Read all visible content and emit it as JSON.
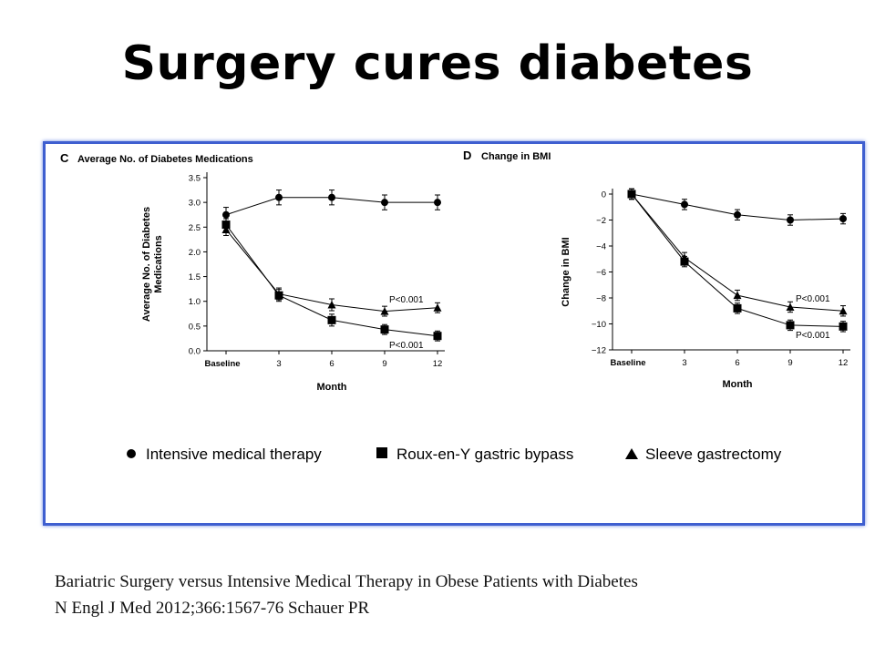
{
  "page": {
    "title": "Surgery cures diabetes"
  },
  "caption": {
    "line1": "Bariatric Surgery versus Intensive Medical Therapy in Obese Patients with Diabetes",
    "line2": "N Engl J Med 2012;366:1567-76 Schauer PR"
  },
  "legend": {
    "items": [
      {
        "marker": "circle",
        "label": "Intensive medical therapy"
      },
      {
        "marker": "square",
        "label": "Roux-en-Y gastric bypass"
      },
      {
        "marker": "triangle",
        "label": "Sleeve gastrectomy"
      }
    ]
  },
  "chart_data": [
    {
      "type": "line",
      "panel_letter": "C",
      "title": "Average No. of Diabetes Medications",
      "xlabel": "Month",
      "ylabel": "Average No. of Diabetes Medications",
      "x": [
        "Baseline",
        "3",
        "6",
        "9",
        "12"
      ],
      "ylim": [
        0,
        3.5
      ],
      "yticks": [
        "0.0",
        "0.5",
        "1.0",
        "1.5",
        "2.0",
        "2.5",
        "3.0",
        "3.5"
      ],
      "series": [
        {
          "marker": "circle",
          "values": [
            2.75,
            3.1,
            3.1,
            3.0,
            3.0
          ],
          "err": [
            0.15,
            0.15,
            0.15,
            0.15,
            0.15
          ]
        },
        {
          "marker": "square",
          "values": [
            2.55,
            1.12,
            0.62,
            0.43,
            0.3
          ],
          "err": [
            0.12,
            0.12,
            0.12,
            0.1,
            0.1
          ]
        },
        {
          "marker": "triangle",
          "values": [
            2.45,
            1.15,
            0.93,
            0.8,
            0.87
          ],
          "err": [
            0.12,
            0.12,
            0.12,
            0.1,
            0.1
          ]
        }
      ],
      "annotations": [
        "P<0.001",
        "P<0.001"
      ]
    },
    {
      "type": "line",
      "panel_letter": "D",
      "title": "Change in BMI",
      "xlabel": "Month",
      "ylabel": "Change in BMI",
      "x": [
        "Baseline",
        "3",
        "6",
        "9",
        "12"
      ],
      "ylim": [
        -12,
        1
      ],
      "yticks": [
        "0",
        "−2",
        "−4",
        "−6",
        "−8",
        "−10",
        "−12"
      ],
      "series": [
        {
          "marker": "circle",
          "values": [
            0,
            -0.8,
            -1.6,
            -2.0,
            -1.9
          ],
          "err": [
            0.4,
            0.4,
            0.4,
            0.4,
            0.4
          ]
        },
        {
          "marker": "square",
          "values": [
            0,
            -5.2,
            -8.8,
            -10.1,
            -10.2
          ],
          "err": [
            0.4,
            0.4,
            0.4,
            0.4,
            0.4
          ]
        },
        {
          "marker": "triangle",
          "values": [
            0,
            -4.9,
            -7.8,
            -8.7,
            -9.0
          ],
          "err": [
            0.4,
            0.4,
            0.4,
            0.4,
            0.4
          ]
        }
      ],
      "annotations": [
        "P<0.001",
        "P<0.001"
      ]
    }
  ]
}
